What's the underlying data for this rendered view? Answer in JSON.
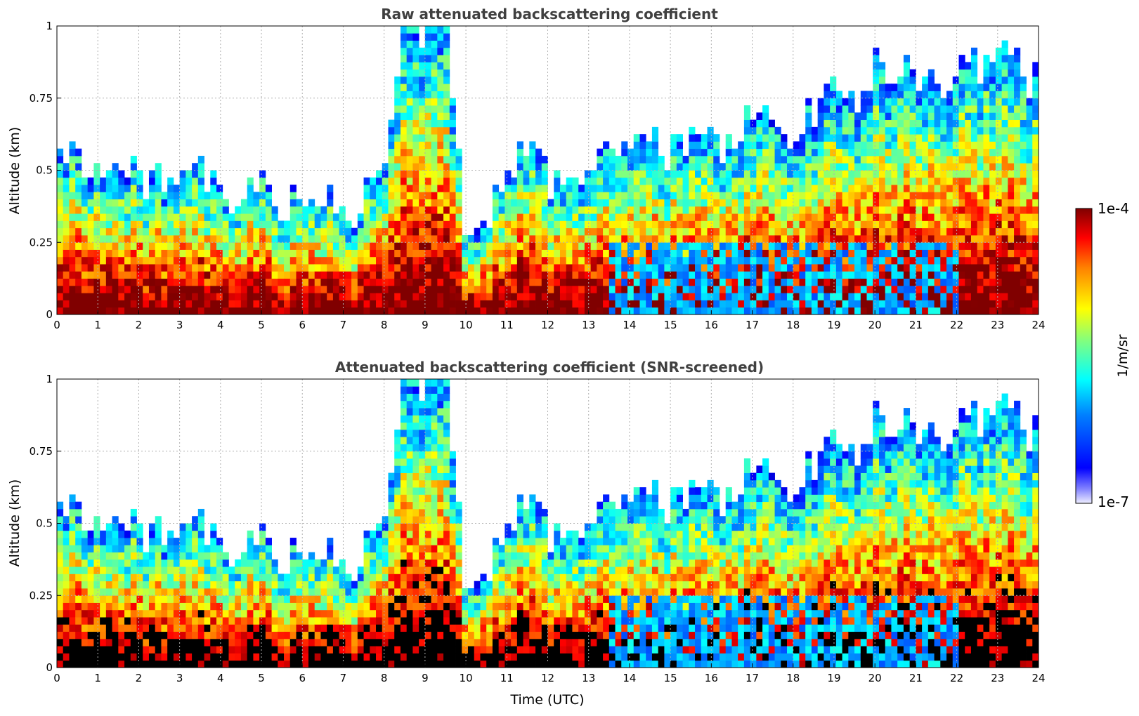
{
  "chart_data": [
    {
      "type": "heatmap",
      "title": "Raw attenuated backscattering coefficient",
      "xlabel": "",
      "ylabel": "Altitude (km)",
      "xlim": [
        0,
        24
      ],
      "ylim": [
        0,
        1
      ],
      "xticks": [
        "0",
        "1",
        "2",
        "3",
        "4",
        "5",
        "6",
        "7",
        "8",
        "9",
        "10",
        "11",
        "12",
        "13",
        "14",
        "15",
        "16",
        "17",
        "18",
        "19",
        "20",
        "21",
        "22",
        "23",
        "24"
      ],
      "yticks": [
        "0",
        "0.25",
        "0.5",
        "0.75",
        "1"
      ],
      "grid": true,
      "screened": false,
      "boundary_layer_top_km": [
        [
          0,
          0.55
        ],
        [
          0.5,
          0.58
        ],
        [
          1,
          0.5
        ],
        [
          1.5,
          0.52
        ],
        [
          2,
          0.45
        ],
        [
          2.5,
          0.5
        ],
        [
          3,
          0.42
        ],
        [
          3.5,
          0.5
        ],
        [
          4,
          0.38
        ],
        [
          4.5,
          0.4
        ],
        [
          5,
          0.45
        ],
        [
          5.5,
          0.38
        ],
        [
          6,
          0.4
        ],
        [
          6.5,
          0.42
        ],
        [
          7,
          0.3
        ],
        [
          7.5,
          0.4
        ],
        [
          8,
          0.5
        ],
        [
          8.5,
          1
        ],
        [
          9,
          1
        ],
        [
          9.5,
          1
        ],
        [
          10,
          0.3
        ],
        [
          10.5,
          0.35
        ],
        [
          11,
          0.5
        ],
        [
          11.5,
          0.6
        ],
        [
          12,
          0.45
        ],
        [
          12.5,
          0.5
        ],
        [
          13,
          0.5
        ],
        [
          13.5,
          0.6
        ],
        [
          14,
          0.55
        ],
        [
          14.5,
          0.6
        ],
        [
          15,
          0.55
        ],
        [
          15.5,
          0.6
        ],
        [
          16,
          0.6
        ],
        [
          16.5,
          0.6
        ],
        [
          17,
          0.7
        ],
        [
          17.5,
          0.65
        ],
        [
          18,
          0.6
        ],
        [
          18.5,
          0.7
        ],
        [
          19,
          0.8
        ],
        [
          19.5,
          0.75
        ],
        [
          20,
          0.85
        ],
        [
          20.5,
          0.85
        ],
        [
          21,
          0.85
        ],
        [
          21.5,
          0.75
        ],
        [
          22,
          0.9
        ],
        [
          22.5,
          0.85
        ],
        [
          23,
          0.9
        ],
        [
          23.5,
          0.85
        ],
        [
          24,
          0.8
        ]
      ]
    },
    {
      "type": "heatmap",
      "title": "Attenuated backscattering coefficient (SNR-screened)",
      "xlabel": "Time (UTC)",
      "ylabel": "Altitude (km)",
      "xlim": [
        0,
        24
      ],
      "ylim": [
        0,
        1
      ],
      "xticks": [
        "0",
        "1",
        "2",
        "3",
        "4",
        "5",
        "6",
        "7",
        "8",
        "9",
        "10",
        "11",
        "12",
        "13",
        "14",
        "15",
        "16",
        "17",
        "18",
        "19",
        "20",
        "21",
        "22",
        "23",
        "24"
      ],
      "yticks": [
        "0",
        "0.25",
        "0.5",
        "0.75",
        "1"
      ],
      "grid": true,
      "screened": true
    }
  ],
  "colorbar": {
    "label": "1/m/sr",
    "max_label": "1e-4",
    "min_label": "1e-7",
    "colormap": "jet",
    "scale": "log"
  },
  "colors": {
    "low": "#0000ff",
    "high": "#800000",
    "saturated_screened": "#000000"
  }
}
